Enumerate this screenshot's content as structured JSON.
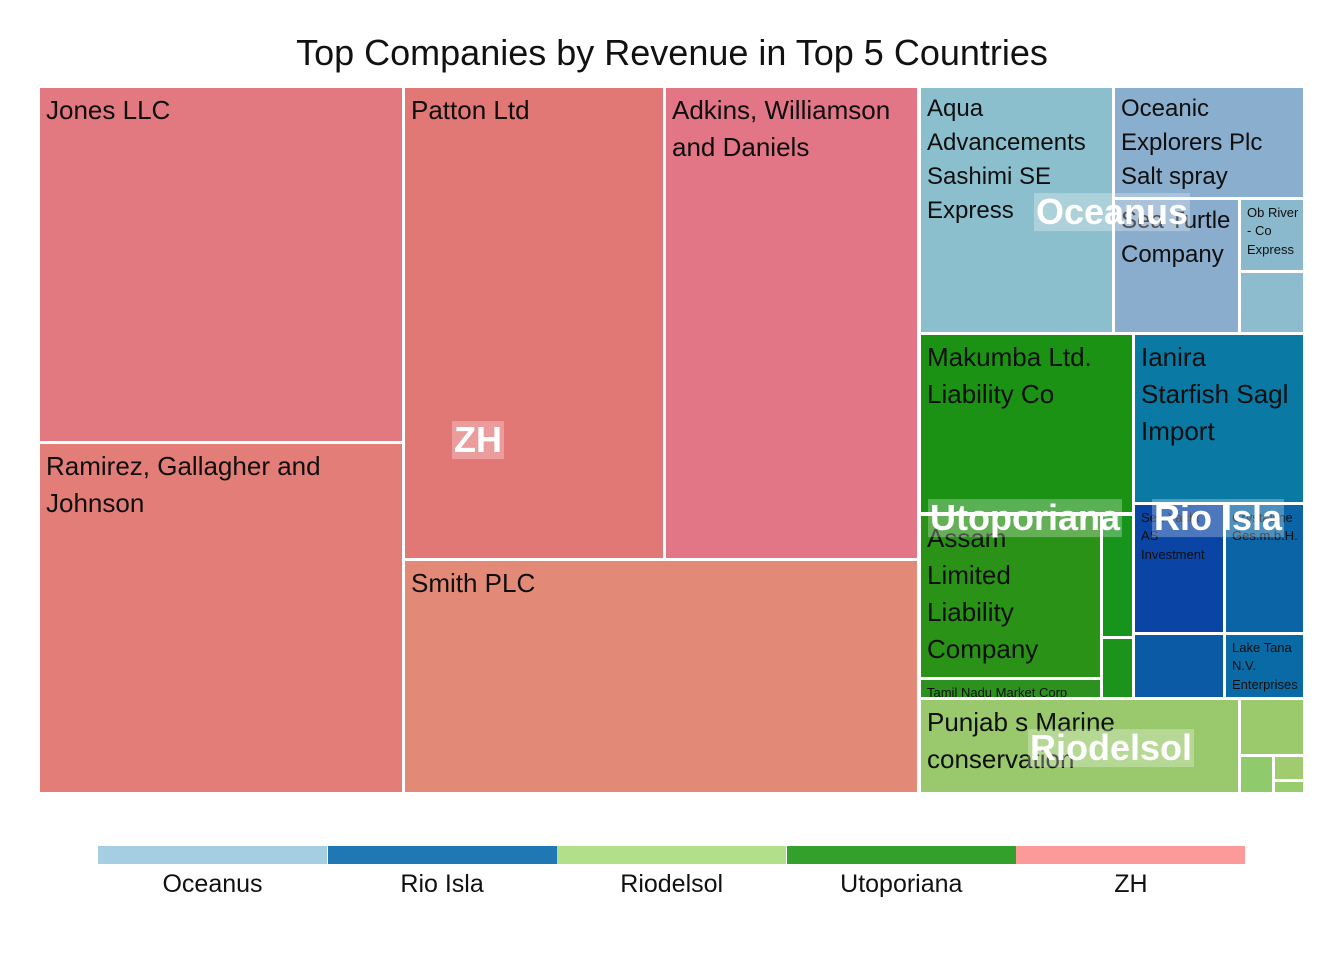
{
  "chart_data": {
    "type": "treemap",
    "title": "Top Companies by Revenue in Top 5 Countries",
    "groups": [
      {
        "name": "ZH",
        "color": "#e07478",
        "children": [
          {
            "name": "Jones LLC",
            "value": 26.3,
            "color": "#e27880"
          },
          {
            "name": "Patton Ltd",
            "value": 20.1,
            "color": "#e27876"
          },
          {
            "name": "Adkins, Williamson and Daniels",
            "value": 19.8,
            "color": "#e27687"
          },
          {
            "name": "Ramirez, Gallagher and Johnson",
            "value": 25.2,
            "color": "#e27e77"
          },
          {
            "name": "Smith PLC",
            "value": 26.0,
            "color": "#e28a77"
          }
        ]
      },
      {
        "name": "Oceanus",
        "color": "#a6cee3",
        "children": [
          {
            "name": "Aqua Advancements Sashimi SE Express",
            "value": 7.8,
            "color": "#8cbfcd"
          },
          {
            "name": "Oceanic Explorers Plc Salt spray",
            "value": 4.3,
            "color": "#8aaecd"
          },
          {
            "name": "Sea Turtle Company",
            "value": 4.4,
            "color": "#8aaccd"
          },
          {
            "name": "Ob River - Co Express",
            "value": 1.3,
            "color": "#8ab8cd"
          },
          {
            "name": "",
            "value": 1.2,
            "color": "#8cbccd"
          }
        ]
      },
      {
        "name": "Utoporiana",
        "color": "#33a02c",
        "children": [
          {
            "name": "Makumba Ltd. Liability Co",
            "value": 7.1,
            "color": "#1c9215"
          },
          {
            "name": "Assam Limited Liability Company",
            "value": 5.6,
            "color": "#2a9217"
          },
          {
            "name": "",
            "value": 1.2,
            "color": "#16941c"
          },
          {
            "name": "",
            "value": 0.9,
            "color": "#1c941c"
          },
          {
            "name": "Tamil Nadu  Market Corp",
            "value": 0.5,
            "color": "#2d9120"
          }
        ]
      },
      {
        "name": "Rio Isla",
        "color": "#1f78b4",
        "children": [
          {
            "name": "Ianira Starfish Sagl Import",
            "value": 5.0,
            "color": "#0a7aa5"
          },
          {
            "name": "Sea Yacht AS Investment",
            "value": 2.3,
            "color": "#0a44a5"
          },
          {
            "name": "Crystalline Ges.m.b.H.",
            "value": 2.0,
            "color": "#0a64a5"
          },
          {
            "name": "",
            "value": 1.5,
            "color": "#0a5aa5"
          },
          {
            "name": "Lake Tana N.V. Enterprises",
            "value": 1.3,
            "color": "#0a6aa5"
          }
        ]
      },
      {
        "name": "Riodelsol",
        "color": "#b2df8a",
        "children": [
          {
            "name": "Punjab s Marine conservation",
            "value": 5.3,
            "color": "#9ac96d"
          },
          {
            "name": "",
            "value": 1.1,
            "color": "#9bca6c"
          },
          {
            "name": "",
            "value": 0.6,
            "color": "#8fcb6c"
          },
          {
            "name": "",
            "value": 0.4,
            "color": "#a0cb6e"
          },
          {
            "name": "",
            "value": 0.3,
            "color": "#98cd6d"
          }
        ]
      }
    ],
    "legend": {
      "position": "bottom",
      "items": [
        {
          "label": "Oceanus",
          "color": "#a6cee3"
        },
        {
          "label": "Rio Isla",
          "color": "#1f78b4"
        },
        {
          "label": "Riodelsol",
          "color": "#b2df8a"
        },
        {
          "label": "Utoporiana",
          "color": "#33a02c"
        },
        {
          "label": "ZH",
          "color": "#fb9a99"
        }
      ]
    }
  }
}
